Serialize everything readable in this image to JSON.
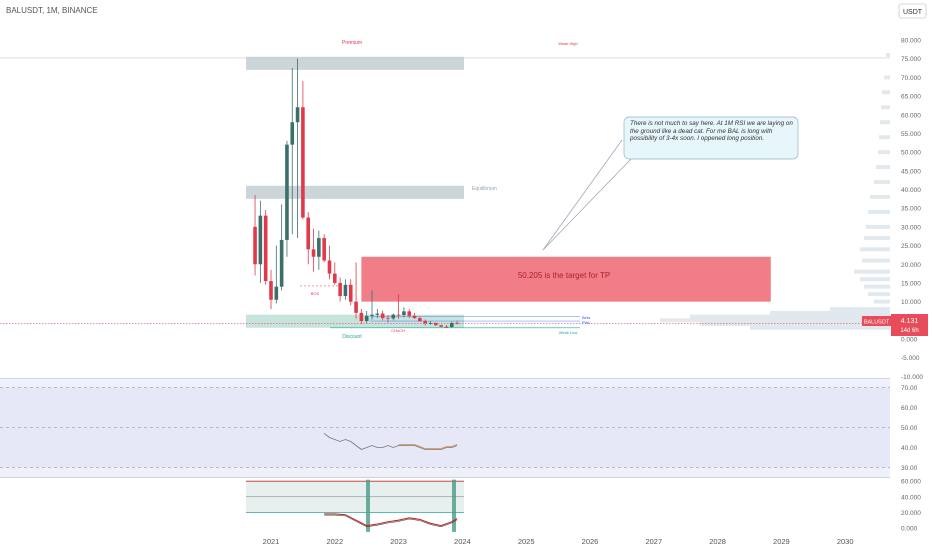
{
  "symbol_header": "BALUSDT, 1M, BINANCE",
  "currency_badge": "USDT",
  "price_axis": {
    "ticks": [
      80,
      75,
      70,
      65,
      60,
      55,
      50,
      45,
      40,
      35,
      30,
      25,
      20,
      15,
      10,
      5,
      0,
      -5,
      -10
    ],
    "labels": [
      "80.000",
      "75.000",
      "70.000",
      "65.000",
      "60.000",
      "55.000",
      "50.000",
      "45.000",
      "40.000",
      "35.000",
      "30.000",
      "25.000",
      "20.000",
      "15.000",
      "10.000",
      "5.000",
      "0.000",
      "-5.000",
      "-10.000"
    ]
  },
  "rsi_axis": {
    "ticks": [
      70,
      60,
      50,
      40,
      30
    ],
    "labels": [
      "70.00",
      "60.00",
      "50.00",
      "40.00",
      "30.00"
    ]
  },
  "osc_axis": {
    "ticks": [
      60,
      40,
      20,
      0
    ],
    "labels": [
      "60.000",
      "40.000",
      "20.000",
      "0.000"
    ]
  },
  "time_axis": {
    "years": [
      2021,
      2022,
      2023,
      2024,
      2025,
      2026,
      2027,
      2028,
      2029,
      2030
    ],
    "labels": [
      "2021",
      "2022",
      "2023",
      "2024",
      "2025",
      "2026",
      "2027",
      "2028",
      "2029",
      "2030"
    ]
  },
  "price_badge": {
    "symbol": "BALUSDT",
    "price": "4.131",
    "countdown": "14d 6h"
  },
  "annotations": {
    "premium": "Premium",
    "weak_high": "Weak High",
    "equilibrium": "Equilibrium",
    "discount": "Discount",
    "weak_low": "Weak Low",
    "bos": "BOS",
    "choch": "CHoCH",
    "tp_box": "50.205 is the target for TP",
    "callout": "There is not much to say here. At 1M RSI we are laying on the ground like a dead cat. For me BAL is long with possibility of 3-4x soon. I oppened long position.",
    "tag_1": "Beta",
    "tag_2": "PWL"
  },
  "colors": {
    "up": "#3d6f6a",
    "down": "#e0394a",
    "price_line": "#e84c5a",
    "tp_box": "#f07d87",
    "zone": "#b0bec5",
    "zone_green": "#a7d4c9",
    "rsi_line": "#777777",
    "osc_red": "#c62828"
  },
  "chart_data": {
    "type": "candlestick",
    "timeframe": "1M",
    "ylim": [
      -10,
      80
    ],
    "candles": [
      {
        "t": "2020-10",
        "o": 30.0,
        "h": 38.5,
        "l": 17.0,
        "c": 20.0
      },
      {
        "t": "2020-11",
        "o": 20.0,
        "h": 37.0,
        "l": 15.0,
        "c": 33.0
      },
      {
        "t": "2020-12",
        "o": 33.0,
        "h": 34.5,
        "l": 14.5,
        "c": 15.5
      },
      {
        "t": "2021-01",
        "o": 15.5,
        "h": 18.5,
        "l": 8.0,
        "c": 10.5
      },
      {
        "t": "2021-02",
        "o": 10.5,
        "h": 25.0,
        "l": 9.5,
        "c": 14.0
      },
      {
        "t": "2021-03",
        "o": 14.0,
        "h": 36.0,
        "l": 13.0,
        "c": 26.5
      },
      {
        "t": "2021-04",
        "o": 26.5,
        "h": 53.0,
        "l": 22.0,
        "c": 52.0
      },
      {
        "t": "2021-05",
        "o": 52.0,
        "h": 72.5,
        "l": 28.0,
        "c": 58.0
      },
      {
        "t": "2021-06",
        "o": 58.0,
        "h": 75.0,
        "l": 27.0,
        "c": 62.0
      },
      {
        "t": "2021-07",
        "o": 62.0,
        "h": 69.0,
        "l": 32.0,
        "c": 32.5
      },
      {
        "t": "2021-08",
        "o": 32.5,
        "h": 34.0,
        "l": 20.0,
        "c": 24.0
      },
      {
        "t": "2021-09",
        "o": 24.0,
        "h": 29.5,
        "l": 18.0,
        "c": 22.0
      },
      {
        "t": "2021-10",
        "o": 22.0,
        "h": 29.0,
        "l": 18.5,
        "c": 27.0
      },
      {
        "t": "2021-11",
        "o": 27.0,
        "h": 28.0,
        "l": 20.5,
        "c": 21.0
      },
      {
        "t": "2021-12",
        "o": 21.0,
        "h": 25.0,
        "l": 16.0,
        "c": 17.5
      },
      {
        "t": "2022-01",
        "o": 17.5,
        "h": 20.5,
        "l": 14.5,
        "c": 15.0
      },
      {
        "t": "2022-02",
        "o": 15.0,
        "h": 16.5,
        "l": 10.0,
        "c": 11.5
      },
      {
        "t": "2022-03",
        "o": 11.5,
        "h": 16.0,
        "l": 10.5,
        "c": 14.5
      },
      {
        "t": "2022-04",
        "o": 14.5,
        "h": 16.0,
        "l": 9.0,
        "c": 10.0
      },
      {
        "t": "2022-05",
        "o": 10.0,
        "h": 20.5,
        "l": 5.5,
        "c": 7.0
      },
      {
        "t": "2022-06",
        "o": 7.0,
        "h": 8.0,
        "l": 4.0,
        "c": 4.8
      },
      {
        "t": "2022-07",
        "o": 4.8,
        "h": 7.5,
        "l": 4.3,
        "c": 6.2
      },
      {
        "t": "2022-08",
        "o": 6.2,
        "h": 13.0,
        "l": 5.2,
        "c": 6.5
      },
      {
        "t": "2022-09",
        "o": 6.5,
        "h": 8.0,
        "l": 5.6,
        "c": 6.8
      },
      {
        "t": "2022-10",
        "o": 6.8,
        "h": 7.6,
        "l": 5.0,
        "c": 5.6
      },
      {
        "t": "2022-11",
        "o": 5.6,
        "h": 6.4,
        "l": 4.4,
        "c": 5.5
      },
      {
        "t": "2022-12",
        "o": 5.5,
        "h": 6.8,
        "l": 5.0,
        "c": 6.5
      },
      {
        "t": "2023-01",
        "o": 6.5,
        "h": 12.0,
        "l": 5.4,
        "c": 6.4
      },
      {
        "t": "2023-02",
        "o": 6.4,
        "h": 8.5,
        "l": 5.8,
        "c": 7.4
      },
      {
        "t": "2023-03",
        "o": 7.4,
        "h": 8.0,
        "l": 5.6,
        "c": 6.2
      },
      {
        "t": "2023-04",
        "o": 6.2,
        "h": 7.0,
        "l": 5.4,
        "c": 5.6
      },
      {
        "t": "2023-05",
        "o": 5.6,
        "h": 6.0,
        "l": 4.6,
        "c": 4.8
      },
      {
        "t": "2023-06",
        "o": 4.8,
        "h": 5.2,
        "l": 3.6,
        "c": 4.2
      },
      {
        "t": "2023-07",
        "o": 4.2,
        "h": 4.8,
        "l": 3.8,
        "c": 4.3
      },
      {
        "t": "2023-08",
        "o": 4.3,
        "h": 4.4,
        "l": 3.5,
        "c": 3.7
      },
      {
        "t": "2023-09",
        "o": 3.7,
        "h": 3.8,
        "l": 3.2,
        "c": 3.3
      },
      {
        "t": "2023-10",
        "o": 3.3,
        "h": 3.7,
        "l": 3.0,
        "c": 3.2
      },
      {
        "t": "2023-11",
        "o": 3.2,
        "h": 4.6,
        "l": 3.1,
        "c": 4.3
      },
      {
        "t": "2023-12",
        "o": 4.3,
        "h": 4.9,
        "l": 3.9,
        "c": 4.131
      }
    ],
    "current_price": 4.131,
    "tp_target": 50.205,
    "zones": [
      {
        "name": "Premium",
        "from": "2020-10",
        "to": "2023-12",
        "low": 72.0,
        "high": 75.5
      },
      {
        "name": "Equilibrium",
        "from": "2020-10",
        "to": "2023-12",
        "low": 37.5,
        "high": 41.0
      },
      {
        "name": "Discount",
        "from": "2020-10",
        "to": "2023-12",
        "low": 3.0,
        "high": 6.5
      },
      {
        "name": "TP",
        "from": "2022-06",
        "to": "2028-11",
        "low": 10.0,
        "high": 22.0
      }
    ],
    "rsi": {
      "ylim": [
        27,
        77
      ],
      "levels": [
        70,
        50,
        30
      ],
      "x": [
        "2021-11",
        "2021-12",
        "2022-01",
        "2022-02",
        "2022-03",
        "2022-04",
        "2022-05",
        "2022-06",
        "2022-07",
        "2022-08",
        "2022-09",
        "2022-10",
        "2022-11",
        "2022-12",
        "2023-01",
        "2023-02",
        "2023-03",
        "2023-04",
        "2023-05",
        "2023-06",
        "2023-07",
        "2023-08",
        "2023-09",
        "2023-10",
        "2023-11",
        "2023-12"
      ],
      "values": [
        47,
        45,
        44,
        43,
        44,
        43,
        41,
        39,
        40,
        41,
        40,
        40,
        41,
        40,
        41,
        41,
        41,
        41,
        40,
        39,
        39,
        39,
        39,
        40,
        40,
        41
      ]
    },
    "oscillator": {
      "ylim": [
        -10,
        65
      ],
      "levels": [
        60,
        40,
        20
      ],
      "x": [
        "2021-11",
        "2022-01",
        "2022-03",
        "2022-05",
        "2022-07",
        "2022-09",
        "2022-11",
        "2023-01",
        "2023-03",
        "2023-05",
        "2023-07",
        "2023-09",
        "2023-11",
        "2023-12"
      ],
      "values": [
        18,
        18,
        17,
        10,
        3,
        5,
        8,
        10,
        13,
        11,
        6,
        3,
        8,
        12
      ]
    }
  }
}
